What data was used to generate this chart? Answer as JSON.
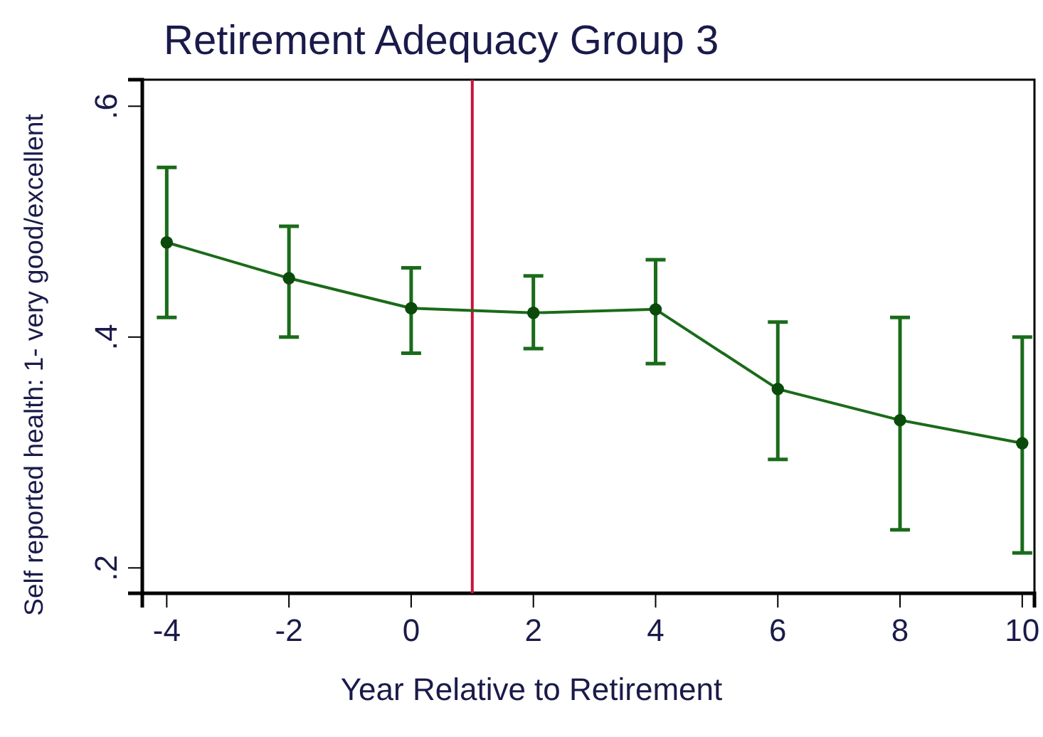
{
  "chart_data": {
    "type": "line",
    "title": "Retirement Adequacy Group 3",
    "xlabel": "Year Relative to Retirement",
    "ylabel": "Self reported health: 1- very good/excellent",
    "x": [
      -4,
      -2,
      0,
      2,
      4,
      6,
      8,
      10
    ],
    "series": [
      {
        "color": "#1a6b1a",
        "values": [
          0.482,
          0.451,
          0.425,
          0.421,
          0.424,
          0.355,
          0.328,
          0.308
        ],
        "errors": [
          [
            0.417,
            0.547
          ],
          [
            0.4,
            0.496
          ],
          [
            0.386,
            0.46
          ],
          [
            0.39,
            0.453
          ],
          [
            0.377,
            0.467
          ],
          [
            0.294,
            0.413
          ],
          [
            0.233,
            0.417
          ],
          [
            0.213,
            0.4
          ]
        ]
      }
    ],
    "xlim": [
      -4.4,
      10.2
    ],
    "ylim": [
      0.178,
      0.623
    ],
    "xticks": [
      -4,
      -2,
      0,
      2,
      4,
      6,
      8,
      10
    ],
    "yticks": [
      {
        "value": 0.2,
        "label": ".2"
      },
      {
        "value": 0.4,
        "label": ".4"
      },
      {
        "value": 0.6,
        "label": ".6"
      }
    ],
    "ref_lines": [
      {
        "axis": "x",
        "value": 1,
        "color": "#c8143c"
      }
    ],
    "marker": "circle",
    "grid": false
  }
}
